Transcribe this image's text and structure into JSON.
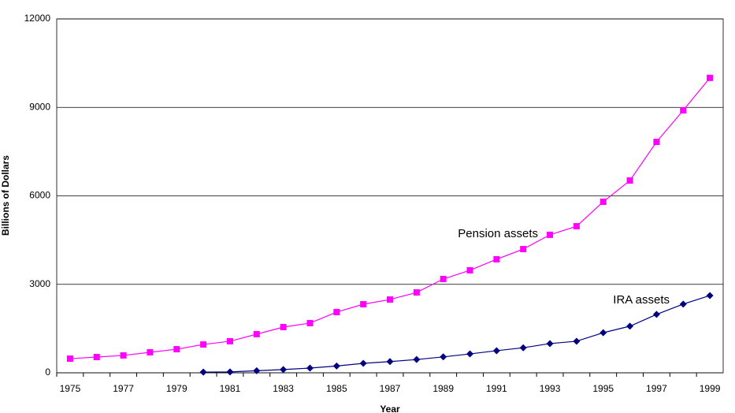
{
  "chart_data": {
    "type": "line",
    "x_label": "Year",
    "y_label": "Billions of Dollars",
    "categories": [
      "1975",
      null,
      "1977",
      null,
      "1979",
      null,
      "1981",
      null,
      "1983",
      null,
      "1985",
      null,
      "1987",
      null,
      "1989",
      null,
      "1991",
      null,
      "1993",
      null,
      "1995",
      null,
      "1997",
      null,
      "1999"
    ],
    "series": [
      {
        "name": "Pension assets",
        "color": "#ff00ff",
        "marker": "square",
        "values": [
          480,
          535,
          590,
          695,
          800,
          960,
          1070,
          1310,
          1550,
          1685,
          2060,
          2325,
          2485,
          2725,
          3180,
          3475,
          3850,
          4195,
          4680,
          4970,
          5800,
          6520,
          7830,
          8900,
          10000
        ]
      },
      {
        "name": "IRA assets",
        "color": "#000080",
        "marker": "diamond",
        "values": [
          null,
          null,
          null,
          null,
          null,
          25,
          30,
          70,
          110,
          160,
          230,
          320,
          380,
          450,
          540,
          640,
          750,
          850,
          990,
          1070,
          1360,
          1580,
          1980,
          2330,
          2620
        ]
      }
    ],
    "ylim": [
      0,
      12000
    ],
    "yticks": [
      0,
      3000,
      6000,
      9000,
      12000
    ],
    "grid": true
  }
}
